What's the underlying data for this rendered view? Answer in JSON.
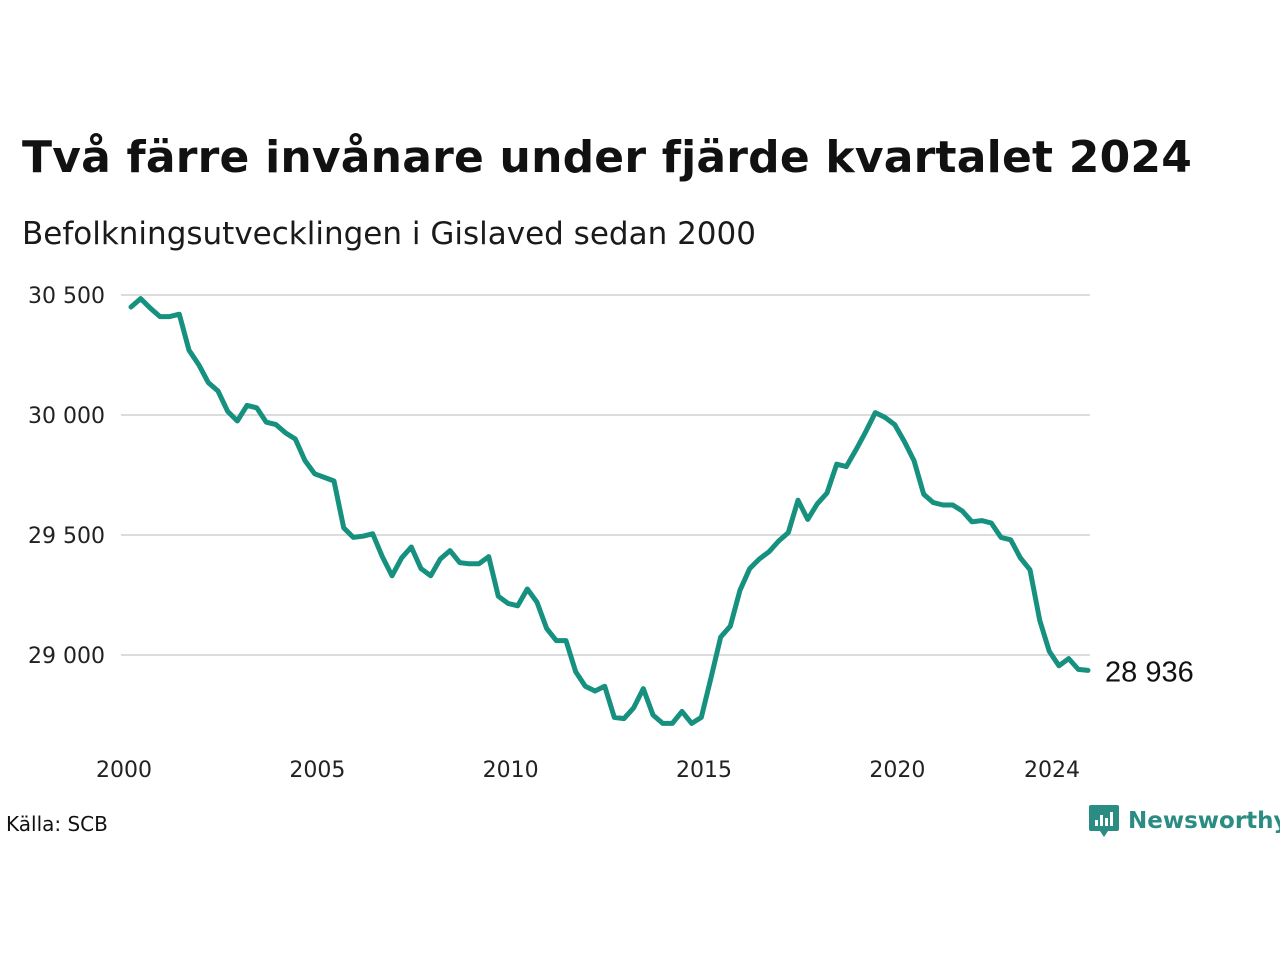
{
  "title": "Två färre invånare under fjärde kvartalet 2024",
  "subtitle": "Befolkningsutvecklingen i Gislaved sedan 2000",
  "source": "Källa: SCB",
  "brand": {
    "name": "Newsworthy",
    "icon": "newsworthy-logo-icon",
    "color": "#2a8c82"
  },
  "colors": {
    "line": "#16907f",
    "grid": "#dcdcdc"
  },
  "chart_data": {
    "type": "line",
    "grid": true,
    "ylim": [
      28700,
      30500
    ],
    "y_ticks": [
      {
        "value": 29000,
        "label": "29 000"
      },
      {
        "value": 29500,
        "label": "29 500"
      },
      {
        "value": 30000,
        "label": "30 000"
      },
      {
        "value": 30500,
        "label": "30 500"
      }
    ],
    "x_ticks": [
      {
        "value": 2000,
        "label": "2000"
      },
      {
        "value": 2005,
        "label": "2005"
      },
      {
        "value": 2010,
        "label": "2010"
      },
      {
        "value": 2015,
        "label": "2015"
      },
      {
        "value": 2020,
        "label": "2020"
      },
      {
        "value": 2024,
        "label": "2024"
      }
    ],
    "end_label": "28 936",
    "series": [
      {
        "x": [
          2000.0,
          2000.25,
          2000.5,
          2000.75,
          2001.0,
          2001.25,
          2001.5,
          2001.75,
          2002.0,
          2002.25,
          2002.5,
          2002.75,
          2003.0,
          2003.25,
          2003.5,
          2003.75,
          2004.0,
          2004.25,
          2004.5,
          2004.75,
          2005.0,
          2005.25,
          2005.5,
          2005.75,
          2006.0,
          2006.25,
          2006.5,
          2006.75,
          2007.0,
          2007.25,
          2007.5,
          2007.75,
          2008.0,
          2008.25,
          2008.5,
          2008.75,
          2009.0,
          2009.25,
          2009.5,
          2009.75,
          2010.0,
          2010.25,
          2010.5,
          2010.75,
          2011.0,
          2011.25,
          2011.5,
          2011.75,
          2012.0,
          2012.25,
          2012.5,
          2012.75,
          2013.0,
          2013.25,
          2013.5,
          2013.75,
          2014.0,
          2014.25,
          2014.5,
          2014.75,
          2015.0,
          2015.25,
          2015.5,
          2015.75,
          2016.0,
          2016.25,
          2016.5,
          2016.75,
          2017.0,
          2017.25,
          2017.5,
          2017.75,
          2018.0,
          2018.25,
          2018.5,
          2018.75,
          2019.0,
          2019.25,
          2019.5,
          2019.75,
          2020.0,
          2020.25,
          2020.5,
          2020.75,
          2021.0,
          2021.25,
          2021.5,
          2021.75,
          2022.0,
          2022.25,
          2022.5,
          2022.75,
          2023.0,
          2023.25,
          2023.5,
          2023.75,
          2024.0,
          2024.25,
          2024.5,
          2024.75
        ],
        "y": [
          30450,
          30485,
          30445,
          30410,
          30410,
          30420,
          30270,
          30210,
          30135,
          30100,
          30015,
          29975,
          30040,
          30030,
          29970,
          29960,
          29925,
          29900,
          29810,
          29755,
          29740,
          29725,
          29530,
          29490,
          29495,
          29505,
          29410,
          29330,
          29405,
          29450,
          29360,
          29330,
          29400,
          29435,
          29385,
          29380,
          29380,
          29410,
          29245,
          29215,
          29205,
          29275,
          29220,
          29110,
          29060,
          29060,
          28930,
          28870,
          28850,
          28870,
          28740,
          28735,
          28780,
          28860,
          28750,
          28715,
          28715,
          28765,
          28715,
          28740,
          28905,
          29075,
          29120,
          29270,
          29360,
          29400,
          29430,
          29475,
          29510,
          29645,
          29565,
          29630,
          29675,
          29795,
          29785,
          29855,
          29930,
          30010,
          29990,
          29960,
          29890,
          29810,
          29670,
          29635,
          29625,
          29625,
          29600,
          29555,
          29560,
          29550,
          29490,
          29480,
          29405,
          29355,
          29145,
          29015,
          28955,
          28985,
          28940,
          28936
        ]
      }
    ]
  }
}
